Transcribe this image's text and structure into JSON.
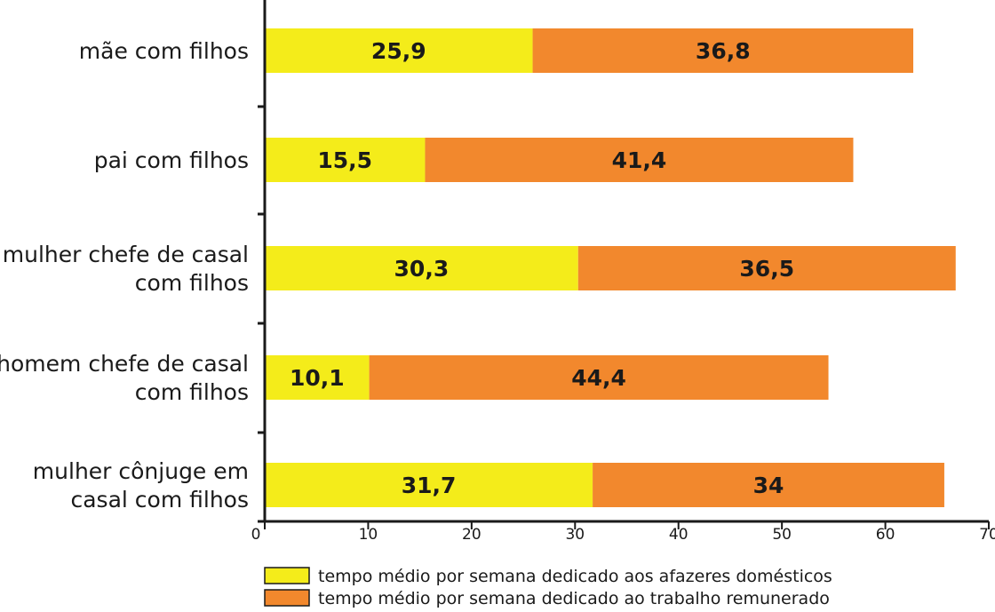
{
  "chart_data": {
    "type": "bar",
    "orientation": "horizontal",
    "stacked": true,
    "categories": [
      [
        "mãe com filhos"
      ],
      [
        "pai com filhos"
      ],
      [
        "mulher chefe de casal",
        "com filhos"
      ],
      [
        "homem chefe de casal",
        "com filhos"
      ],
      [
        "mulher cônjuge em",
        "casal com filhos"
      ]
    ],
    "series": [
      {
        "name": "tempo médio por semana dedicado aos afazeres domésticos",
        "color": "#f4ec1a",
        "values": [
          25.9,
          15.5,
          30.3,
          10.1,
          31.7
        ],
        "labels": [
          "25,9",
          "15,5",
          "30,3",
          "10,1",
          "31,7"
        ]
      },
      {
        "name": "tempo médio por semana dedicado ao trabalho remunerado",
        "color": "#f2882d",
        "values": [
          36.8,
          41.4,
          36.5,
          44.4,
          34
        ],
        "labels": [
          "36,8",
          "41,4",
          "36,5",
          "44,4",
          "34"
        ]
      }
    ],
    "xlim": [
      0,
      70
    ],
    "xticks": [
      "0",
      "10",
      "20",
      "30",
      "40",
      "50",
      "60",
      "70"
    ],
    "grid": false,
    "legend_position": "bottom"
  }
}
